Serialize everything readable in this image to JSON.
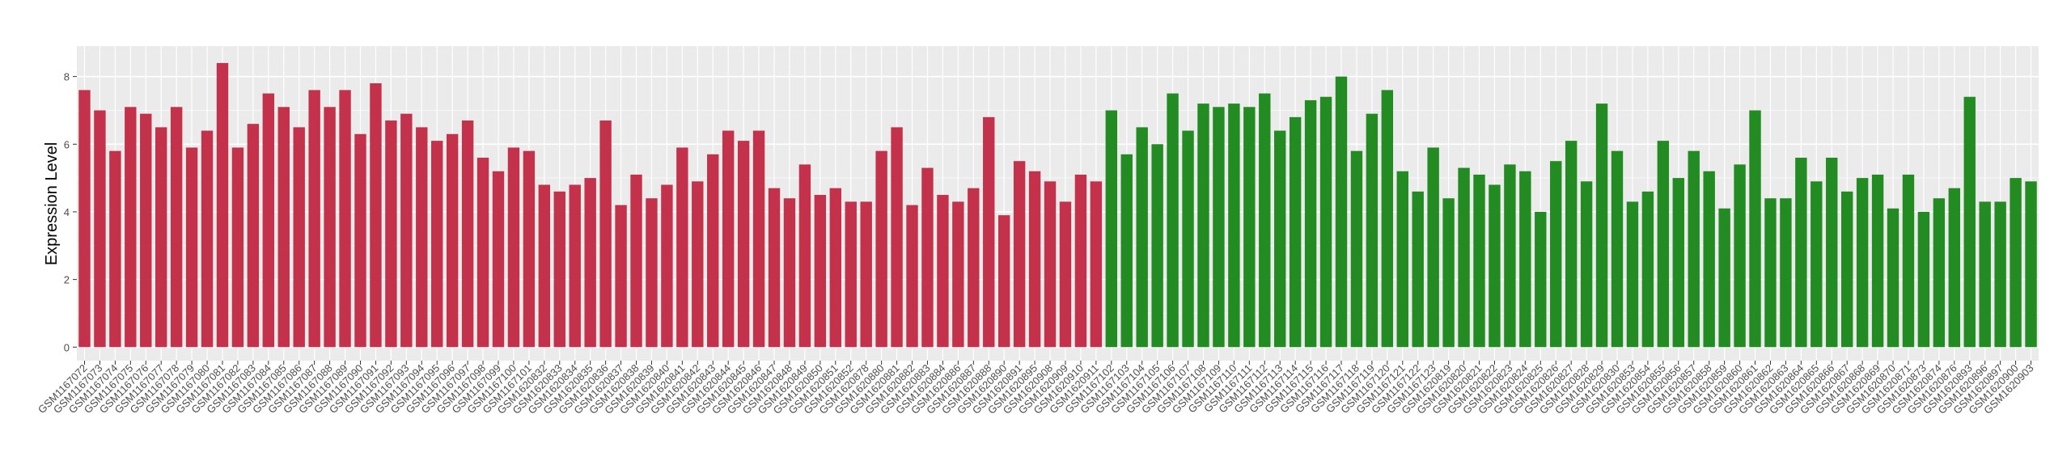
{
  "chart_data": {
    "type": "bar",
    "y_label": "Expression Level",
    "ylim": [
      -0.4,
      8.9
    ],
    "yticks": [
      0,
      2,
      4,
      6,
      8
    ],
    "grid": true,
    "series": [
      {
        "color": "#c4314b",
        "categories": [
          "GSM1167072",
          "GSM1167073",
          "GSM1167074",
          "GSM1167075",
          "GSM1167076",
          "GSM1167077",
          "GSM1167078",
          "GSM1167079",
          "GSM1167080",
          "GSM1167081",
          "GSM1167082",
          "GSM1167083",
          "GSM1167084",
          "GSM1167085",
          "GSM1167086",
          "GSM1167087",
          "GSM1167088",
          "GSM1167089",
          "GSM1167090",
          "GSM1167091",
          "GSM1167092",
          "GSM1167093",
          "GSM1167094",
          "GSM1167095",
          "GSM1167096",
          "GSM1167097",
          "GSM1167098",
          "GSM1167099",
          "GSM1167100",
          "GSM1167101",
          "GSM1620832",
          "GSM1620833",
          "GSM1620834",
          "GSM1620835",
          "GSM1620836",
          "GSM1620837",
          "GSM1620838",
          "GSM1620839",
          "GSM1620840",
          "GSM1620841",
          "GSM1620842",
          "GSM1620843",
          "GSM1620844",
          "GSM1620845",
          "GSM1620846",
          "GSM1620847",
          "GSM1620848",
          "GSM1620849",
          "GSM1620850",
          "GSM1620851",
          "GSM1620852",
          "GSM1620878",
          "GSM1620880",
          "GSM1620881",
          "GSM1620882",
          "GSM1620883",
          "GSM1620884",
          "GSM1620886",
          "GSM1620887",
          "GSM1620888",
          "GSM1620890",
          "GSM1620891",
          "GSM1620895",
          "GSM1620908",
          "GSM1620909",
          "GSM1620910",
          "GSM1620911"
        ],
        "values": [
          7.6,
          7.0,
          5.8,
          7.1,
          6.9,
          6.5,
          7.1,
          5.9,
          6.4,
          8.4,
          5.9,
          6.6,
          7.5,
          7.1,
          6.5,
          7.6,
          7.1,
          7.6,
          6.3,
          7.8,
          6.7,
          6.9,
          6.5,
          6.1,
          6.3,
          6.7,
          5.6,
          5.2,
          5.9,
          5.8,
          4.8,
          4.6,
          4.8,
          5.0,
          6.7,
          4.2,
          5.1,
          4.4,
          4.8,
          5.9,
          4.9,
          5.7,
          6.4,
          6.1,
          6.4,
          4.7,
          4.4,
          5.4,
          4.5,
          4.7,
          4.3,
          4.3,
          5.8,
          6.5,
          4.2,
          5.3,
          4.5,
          4.3,
          4.7,
          6.8,
          3.9,
          5.5,
          5.2,
          4.9,
          4.3,
          5.1,
          4.9
        ]
      },
      {
        "color": "#228b22",
        "categories": [
          "GSM1167102",
          "GSM1167103",
          "GSM1167104",
          "GSM1167105",
          "GSM1167106",
          "GSM1167107",
          "GSM1167108",
          "GSM1167109",
          "GSM1167110",
          "GSM1167111",
          "GSM1167112",
          "GSM1167113",
          "GSM1167114",
          "GSM1167115",
          "GSM1167116",
          "GSM1167117",
          "GSM1167118",
          "GSM1167119",
          "GSM1167120",
          "GSM1167121",
          "GSM1167122",
          "GSM1167123",
          "GSM1620819",
          "GSM1620820",
          "GSM1620821",
          "GSM1620822",
          "GSM1620823",
          "GSM1620824",
          "GSM1620825",
          "GSM1620826",
          "GSM1620827",
          "GSM1620828",
          "GSM1620829",
          "GSM1620830",
          "GSM1620853",
          "GSM1620854",
          "GSM1620855",
          "GSM1620856",
          "GSM1620857",
          "GSM1620858",
          "GSM1620859",
          "GSM1620860",
          "GSM1620861",
          "GSM1620862",
          "GSM1620863",
          "GSM1620864",
          "GSM1620865",
          "GSM1620866",
          "GSM1620867",
          "GSM1620868",
          "GSM1620869",
          "GSM1620870",
          "GSM1620871",
          "GSM1620873",
          "GSM1620874",
          "GSM1620876",
          "GSM1620893",
          "GSM1620896",
          "GSM1620897",
          "GSM1620900",
          "GSM1620903"
        ],
        "values": [
          7.0,
          5.7,
          6.5,
          6.0,
          7.5,
          6.4,
          7.2,
          7.1,
          7.2,
          7.1,
          7.5,
          6.4,
          6.8,
          7.3,
          7.4,
          8.0,
          5.8,
          6.9,
          7.6,
          5.2,
          4.6,
          5.9,
          4.4,
          5.3,
          5.1,
          4.8,
          5.4,
          5.2,
          4.0,
          5.5,
          6.1,
          4.9,
          7.2,
          5.8,
          4.3,
          4.6,
          6.1,
          5.0,
          5.8,
          5.2,
          4.1,
          5.4,
          7.0,
          4.4,
          4.4,
          5.6,
          4.9,
          5.6,
          4.6,
          5.0,
          5.1,
          4.1,
          5.1,
          4.0,
          4.4,
          4.7,
          7.4,
          4.3,
          4.3,
          5.0,
          4.9
        ]
      }
    ]
  }
}
